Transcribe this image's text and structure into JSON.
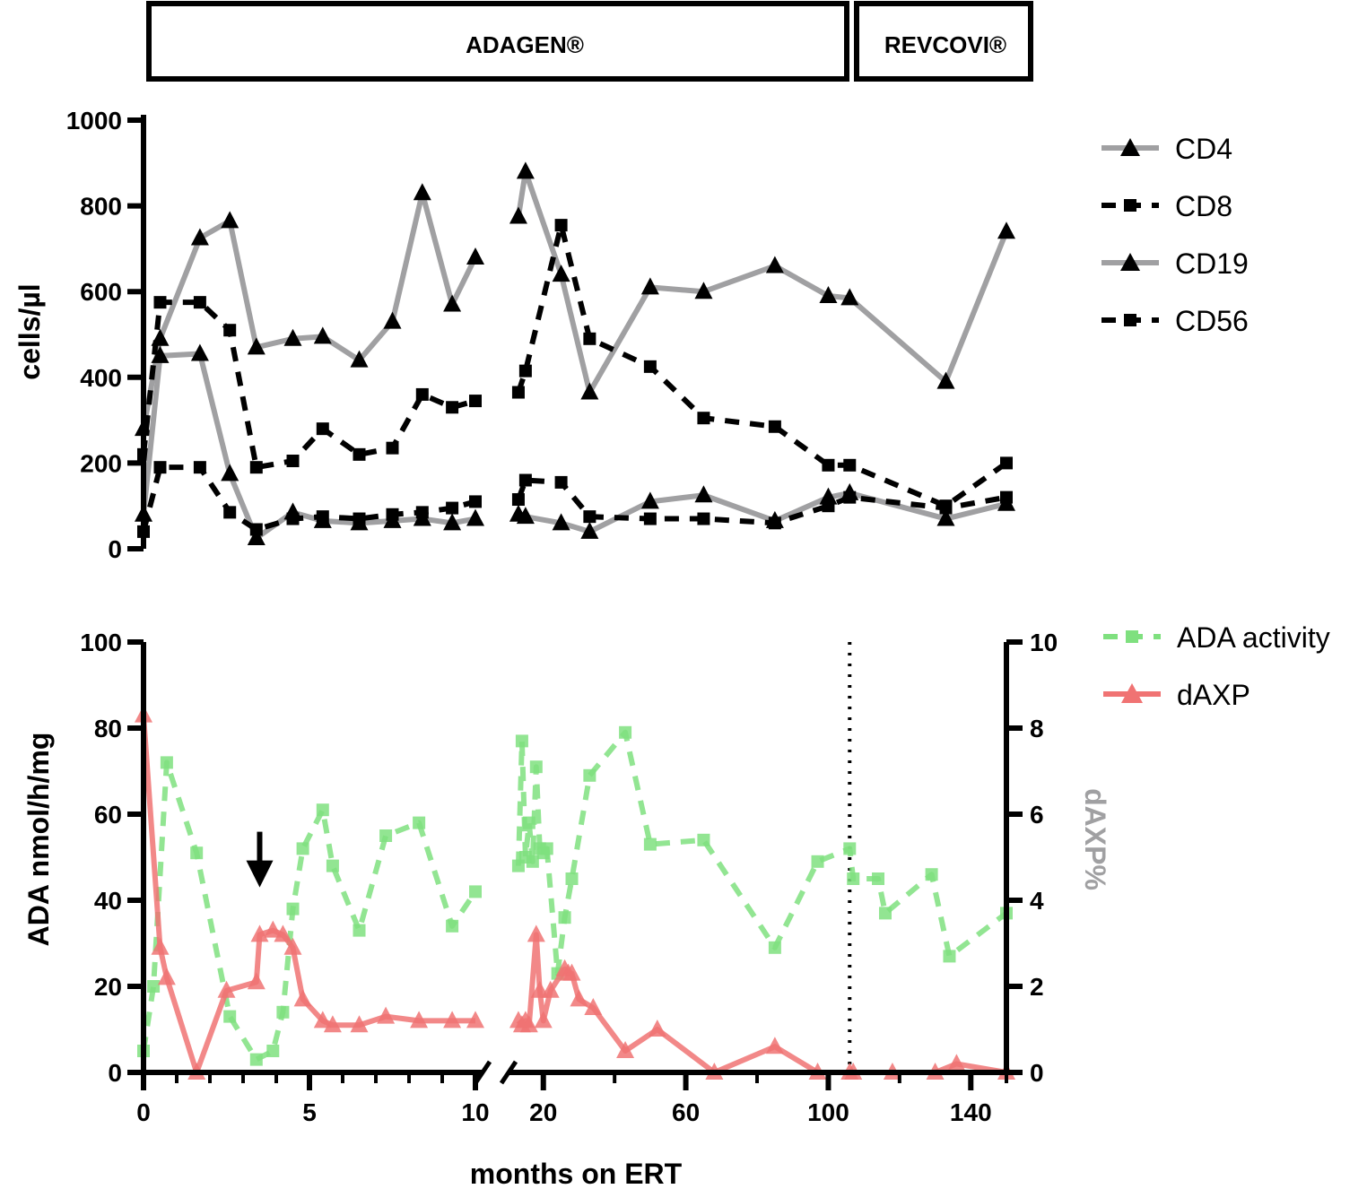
{
  "colors": {
    "cd4": "#a0a0a2",
    "cd8": "#000000",
    "ada": "#7fe07f",
    "daxp": "#f07373"
  },
  "treatment_periods": [
    {
      "label": "ADAGEN®",
      "x_start": 0,
      "x_end": 106
    },
    {
      "label": "REVCOVI®",
      "x_start": 106,
      "x_end": 150
    }
  ],
  "chart_data": [
    {
      "type": "line",
      "title": "",
      "xlabel": "",
      "ylabel": "cells/µl",
      "ylim": [
        0,
        1000
      ],
      "y_ticks": [
        0,
        200,
        400,
        600,
        800,
        1000
      ],
      "x_axis_segments": [
        {
          "xlim": [
            0,
            10
          ],
          "ticks": []
        },
        {
          "xlim": [
            11,
            150
          ],
          "ticks": []
        }
      ],
      "legend_position": "right",
      "series": [
        {
          "name": "CD4",
          "style": "solid",
          "marker": "triangle",
          "color_key": "cd4",
          "x": [
            0,
            0.5,
            1.7,
            2.6,
            3.4,
            4.5,
            5.4,
            6.5,
            7.5,
            8.4,
            9.3,
            10,
            null,
            13,
            15,
            25,
            33,
            50,
            65,
            85,
            100,
            106,
            133,
            150
          ],
          "y": [
            280,
            490,
            725,
            765,
            470,
            490,
            495,
            440,
            530,
            830,
            570,
            680,
            null,
            775,
            880,
            640,
            365,
            610,
            600,
            660,
            590,
            585,
            390,
            740
          ]
        },
        {
          "name": "CD8",
          "style": "dashed",
          "marker": "square",
          "color_key": "cd8",
          "x": [
            0,
            0.5,
            1.7,
            2.6,
            3.4,
            4.5,
            5.4,
            6.5,
            7.5,
            8.4,
            9.3,
            10,
            null,
            13,
            15,
            25,
            33,
            50,
            65,
            85,
            100,
            106,
            133,
            150
          ],
          "y": [
            220,
            575,
            575,
            510,
            190,
            205,
            280,
            220,
            235,
            360,
            330,
            345,
            null,
            365,
            415,
            755,
            490,
            425,
            305,
            285,
            195,
            195,
            100,
            200
          ]
        },
        {
          "name": "CD19",
          "style": "solid",
          "marker": "triangle",
          "color_key": "cd4",
          "x": [
            0,
            0.5,
            1.7,
            2.6,
            3.4,
            4.5,
            5.4,
            6.5,
            7.5,
            8.4,
            9.3,
            10,
            null,
            13,
            15,
            25,
            33,
            50,
            65,
            85,
            100,
            106,
            133,
            150
          ],
          "y": [
            80,
            450,
            455,
            175,
            25,
            85,
            65,
            60,
            65,
            70,
            60,
            70,
            null,
            80,
            75,
            60,
            40,
            110,
            125,
            65,
            120,
            130,
            70,
            105
          ]
        },
        {
          "name": "CD56",
          "style": "dashed",
          "marker": "square",
          "color_key": "cd8",
          "x": [
            0,
            0.5,
            1.7,
            2.6,
            3.4,
            4.5,
            5.4,
            6.5,
            7.5,
            8.4,
            9.3,
            10,
            null,
            13,
            15,
            25,
            33,
            50,
            65,
            85,
            100,
            106,
            133,
            150
          ],
          "y": [
            40,
            190,
            190,
            85,
            45,
            70,
            75,
            70,
            80,
            85,
            95,
            110,
            null,
            115,
            160,
            155,
            75,
            70,
            70,
            60,
            100,
            120,
            95,
            120
          ]
        }
      ]
    },
    {
      "type": "line",
      "title": "",
      "xlabel": "months on ERT",
      "ylabel": "ADA nmol/h/mg",
      "y2label": "dAXP%",
      "ylim": [
        0,
        100
      ],
      "y_ticks": [
        0,
        20,
        40,
        60,
        80,
        100
      ],
      "y2lim": [
        0,
        10
      ],
      "y2_ticks": [
        0,
        2,
        4,
        6,
        8,
        10
      ],
      "x_axis_segments": [
        {
          "xlim": [
            0,
            10
          ],
          "ticks": [
            0,
            5,
            10
          ]
        },
        {
          "xlim": [
            11,
            150
          ],
          "ticks": [
            20,
            60,
            100,
            140
          ]
        }
      ],
      "reference_line_x": 106,
      "annotations": [
        {
          "type": "arrow",
          "x": 3.5,
          "y": 33,
          "direction": "down"
        }
      ],
      "legend_position": "right",
      "series": [
        {
          "name": "ADA activity",
          "style": "dashed",
          "marker": "square",
          "color_key": "ada",
          "axis": "left",
          "x": [
            0,
            0.3,
            0.7,
            1.6,
            2.6,
            3.4,
            3.9,
            4.2,
            4.5,
            4.8,
            5.4,
            5.7,
            6.5,
            7.3,
            8.3,
            9.3,
            10,
            null,
            13,
            14,
            15,
            16,
            17,
            18,
            19,
            20,
            21,
            24,
            26,
            28,
            33,
            43,
            50,
            65,
            85,
            97,
            106,
            107,
            114,
            116,
            129,
            134,
            150
          ],
          "y": [
            5,
            20,
            72,
            51,
            13,
            3,
            5,
            14,
            38,
            52,
            61,
            48,
            33,
            55,
            58,
            34,
            42,
            null,
            48,
            77,
            50,
            58,
            49,
            71,
            52,
            51,
            52,
            23,
            36,
            45,
            69,
            79,
            53,
            54,
            29,
            49,
            52,
            45,
            45,
            37,
            46,
            27,
            37
          ]
        },
        {
          "name": "dAXP",
          "style": "solid",
          "marker": "triangle",
          "color_key": "daxp",
          "axis": "right",
          "x": [
            0,
            0.5,
            0.7,
            1.6,
            2.5,
            3.4,
            3.5,
            3.9,
            4.2,
            4.5,
            4.8,
            5.4,
            5.7,
            6.5,
            7.3,
            8.3,
            9.3,
            10,
            null,
            13,
            14,
            15,
            16,
            18,
            19,
            20,
            22,
            26,
            27,
            28,
            30,
            34,
            43,
            52,
            68,
            85,
            97,
            106,
            107,
            118,
            130,
            136,
            150
          ],
          "y": [
            8.3,
            2.9,
            2.2,
            0,
            1.9,
            2.1,
            3.2,
            3.3,
            3.2,
            2.9,
            1.7,
            1.2,
            1.1,
            1.1,
            1.3,
            1.2,
            1.2,
            1.2,
            null,
            1.2,
            1.1,
            1.2,
            1.1,
            3.2,
            1.9,
            1.2,
            1.9,
            2.4,
            2.3,
            2.3,
            1.7,
            1.5,
            0.5,
            1.0,
            0,
            0.6,
            0,
            0,
            0,
            0,
            0,
            0.2,
            0
          ]
        }
      ]
    }
  ]
}
